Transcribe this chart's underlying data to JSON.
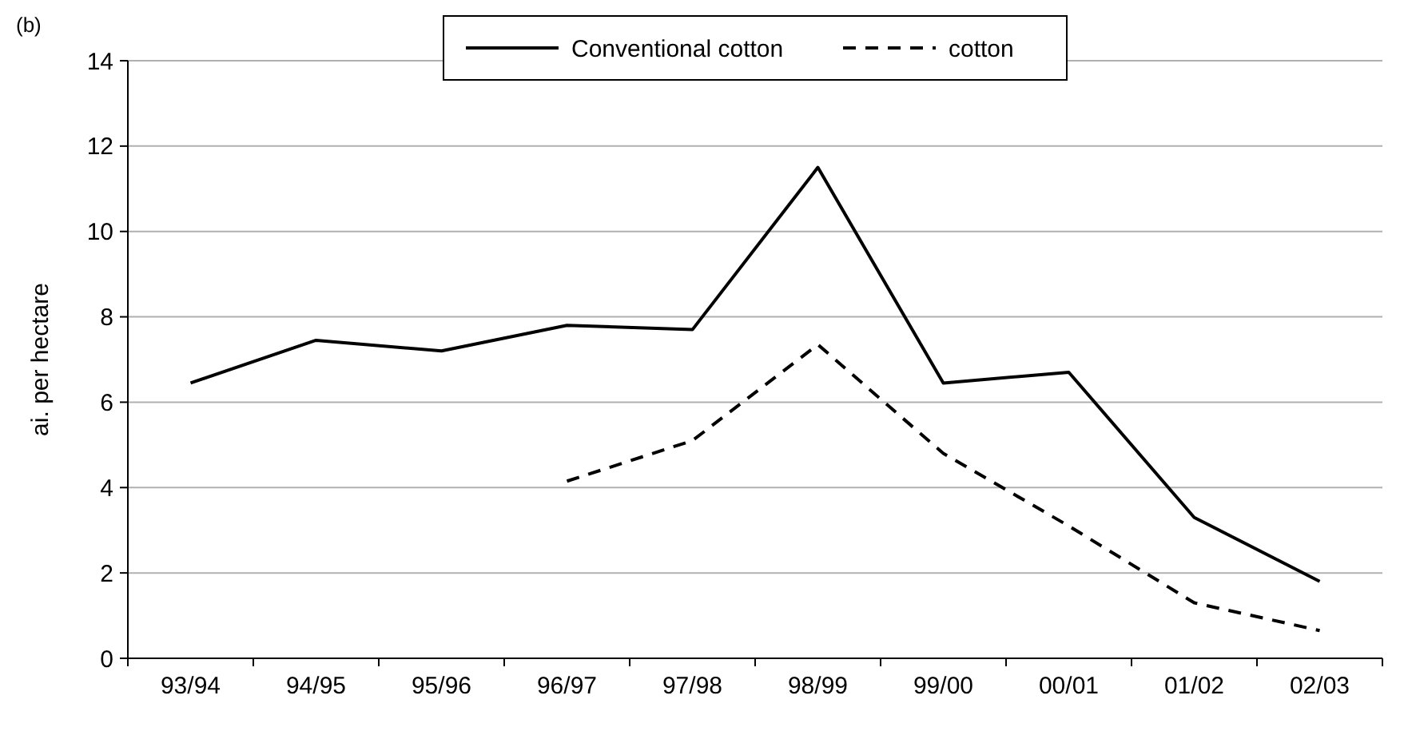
{
  "chart_data": {
    "type": "line",
    "title": "(b)",
    "ylabel": "ai. per hectare",
    "categories": [
      "93/94",
      "94/95",
      "95/96",
      "96/97",
      "97/98",
      "98/99",
      "99/00",
      "00/01",
      "01/02",
      "02/03"
    ],
    "series": [
      {
        "name": "Conventional cotton",
        "color": "#000000",
        "line_style": "solid",
        "values": [
          6.45,
          7.45,
          7.2,
          7.8,
          7.7,
          11.5,
          6.45,
          6.7,
          3.3,
          1.8
        ]
      },
      {
        "name": "cotton",
        "color": "#000000",
        "line_style": "dashed",
        "values": [
          null,
          null,
          null,
          4.15,
          5.1,
          7.35,
          4.8,
          3.1,
          1.3,
          0.65
        ]
      }
    ],
    "ylim": [
      0,
      14
    ],
    "yticks": [
      0,
      2,
      4,
      6,
      8,
      10,
      12,
      14
    ],
    "grid": "y",
    "legend": "top"
  }
}
